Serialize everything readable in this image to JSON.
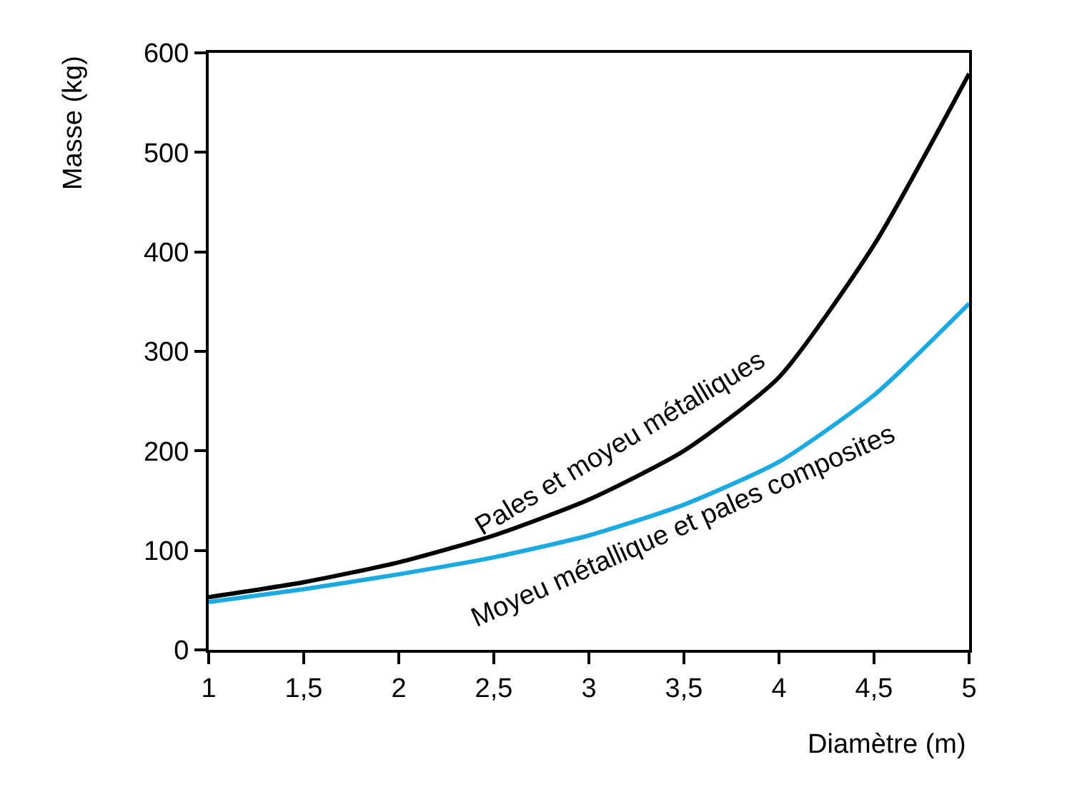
{
  "chart_data": {
    "type": "line",
    "xlabel": "Diamètre (m)",
    "ylabel": "Masse (kg)",
    "x": [
      1,
      1.5,
      2,
      2.5,
      3,
      3.5,
      4,
      4.5,
      5
    ],
    "series": [
      {
        "name": "Pales et moyeu métalliques",
        "color": "#000000",
        "values": [
          53,
          68,
          88,
          115,
          151,
          200,
          274,
          407,
          579
        ]
      },
      {
        "name": "Moyeu métallique et pales composites",
        "color": "#1ba9e1",
        "values": [
          48,
          61,
          76,
          93,
          115,
          146,
          189,
          256,
          348
        ]
      }
    ],
    "xlim": [
      1,
      5
    ],
    "xticks": [
      1,
      {
        "value": 1.5,
        "label": "1,5"
      },
      2,
      {
        "value": 2.5,
        "label": "2,5"
      },
      3,
      {
        "value": 3.5,
        "label": "3,5"
      },
      4,
      {
        "value": 4.5,
        "label": "4,5"
      },
      5
    ],
    "ylim": [
      0,
      600
    ],
    "yticks": [
      0,
      100,
      200,
      300,
      400,
      500,
      600
    ],
    "grid": false,
    "legend": false,
    "marker": "none",
    "line_style": "solid"
  }
}
